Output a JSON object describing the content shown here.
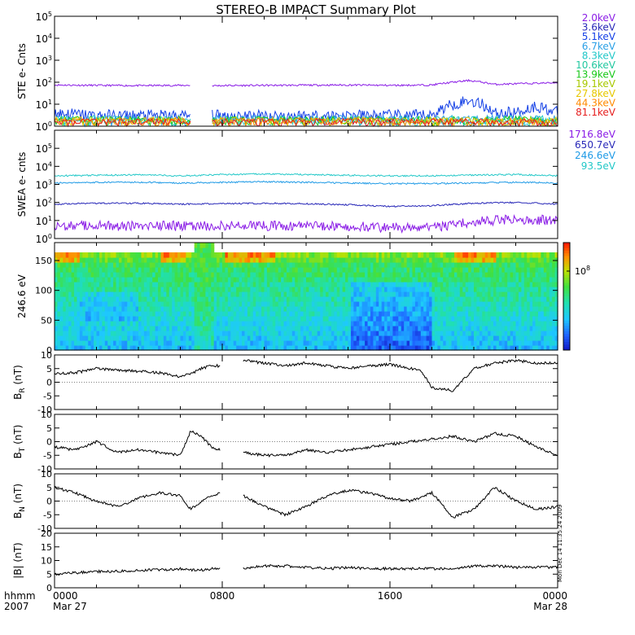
{
  "title": "STEREO-B IMPACT Summary Plot",
  "time_axis": {
    "corner_labels": [
      "hhmm",
      "2007"
    ],
    "ticks": [
      {
        "label": "0000",
        "date": "Mar 27"
      },
      {
        "label": "0800",
        "date": ""
      },
      {
        "label": "1600",
        "date": ""
      },
      {
        "label": "0000",
        "date": "Mar 28"
      }
    ]
  },
  "side_stamp": "Mon Dec 14 11:35:24 2009",
  "colorbar": {
    "tick_label": "10^8"
  },
  "colors": {
    "purple": "#8a1ce6",
    "navy": "#2828b8",
    "blue": "#1440e6",
    "skyblue": "#2aa0e6",
    "cyan": "#22c8c8",
    "green": "#18c818",
    "yellow": "#c8c800",
    "orange": "#ff8a00",
    "red": "#e61e1e",
    "teal": "#22c8c8"
  },
  "chart_data": [
    {
      "type": "line",
      "ylabel": "STE e- Cnts",
      "yscale": "log",
      "ylim": [
        1,
        100000
      ],
      "yticks": [
        "10^0",
        "10^1",
        "10^2",
        "10^3",
        "10^4",
        "10^5"
      ],
      "legend": [
        {
          "name": "2.0keV",
          "color": "#8a1ce6"
        },
        {
          "name": "3.6keV",
          "color": "#2828b8"
        },
        {
          "name": "5.1keV",
          "color": "#1440e6"
        },
        {
          "name": "6.7keV",
          "color": "#2aa0e6"
        },
        {
          "name": "8.3keV",
          "color": "#22c8c8"
        },
        {
          "name": "10.6keV",
          "color": "#22c8a0"
        },
        {
          "name": "13.9keV",
          "color": "#18c818"
        },
        {
          "name": "19.1keV",
          "color": "#a8c800"
        },
        {
          "name": "27.8keV",
          "color": "#e6c800"
        },
        {
          "name": "44.3keV",
          "color": "#ff8a00"
        },
        {
          "name": "81.1keV",
          "color": "#e61e1e"
        }
      ],
      "gap_hours": [
        6.5,
        7.5
      ],
      "series": [
        {
          "name": "2.0keV",
          "x": [
            0,
            2,
            4,
            6,
            6.5,
            7.5,
            10,
            14,
            16,
            18,
            19.8,
            21,
            22,
            23,
            24
          ],
          "y": [
            75,
            72,
            70,
            72,
            72,
            70,
            72,
            75,
            72,
            75,
            120,
            80,
            85,
            90,
            95
          ]
        },
        {
          "name": "5.1keV",
          "x": [
            0,
            2,
            4,
            6,
            6.5,
            7.5,
            10,
            14,
            16,
            18,
            19.8,
            21,
            22,
            23,
            24
          ],
          "y": [
            4,
            3,
            3,
            3,
            3,
            3,
            3,
            3,
            3,
            3,
            15,
            4,
            4,
            8,
            4
          ]
        }
      ]
    },
    {
      "type": "line",
      "ylabel": "SWEA e- cnts",
      "yscale": "log",
      "ylim": [
        1,
        1000000
      ],
      "yticks": [
        "10^0",
        "10^1",
        "10^2",
        "10^3",
        "10^4",
        "10^5"
      ],
      "legend": [
        {
          "name": "1716.8eV",
          "color": "#8a1ce6"
        },
        {
          "name": "650.7eV",
          "color": "#2828b8"
        },
        {
          "name": "246.6eV",
          "color": "#1e9ae6"
        },
        {
          "name": "93.5eV",
          "color": "#22c8c8"
        }
      ],
      "series": [
        {
          "name": "93.5eV",
          "x": [
            0,
            2,
            4,
            6,
            8,
            10,
            12,
            14,
            16,
            18,
            20,
            22,
            24
          ],
          "y": [
            3000,
            3200,
            3400,
            3000,
            3500,
            3800,
            3500,
            3200,
            3000,
            3000,
            3300,
            3500,
            3000
          ]
        },
        {
          "name": "246.6eV",
          "x": [
            0,
            2,
            4,
            6,
            8,
            10,
            12,
            14,
            16,
            18,
            20,
            22,
            24
          ],
          "y": [
            1200,
            1300,
            1300,
            1200,
            1300,
            1400,
            1300,
            1200,
            1100,
            1100,
            1200,
            1300,
            1200
          ]
        },
        {
          "name": "650.7eV",
          "x": [
            0,
            2,
            4,
            6,
            8,
            10,
            12,
            14,
            16,
            18,
            20,
            22,
            24
          ],
          "y": [
            80,
            90,
            90,
            80,
            85,
            90,
            85,
            75,
            60,
            65,
            90,
            100,
            80
          ]
        },
        {
          "name": "1716.8eV",
          "x": [
            0,
            2,
            4,
            6,
            8,
            10,
            12,
            14,
            16,
            18,
            20,
            22,
            24
          ],
          "y": [
            5,
            5,
            5,
            5,
            5,
            5,
            5,
            5,
            4,
            4,
            8,
            12,
            10
          ]
        }
      ]
    },
    {
      "type": "heatmap",
      "ylabel": "246.6 eV",
      "ylim": [
        0,
        180
      ],
      "yticks": [
        0,
        50,
        100,
        150
      ]
    },
    {
      "type": "line",
      "ylabel": "B_R (nT)",
      "ylim": [
        -10,
        10
      ],
      "yticks": [
        -10,
        -5,
        0,
        5,
        10
      ],
      "gap_hours": [
        7.9,
        9.0
      ],
      "series": [
        {
          "name": "B_R",
          "x": [
            0,
            1,
            2,
            3,
            4,
            5,
            6,
            6.5,
            7,
            7.5,
            7.9,
            9,
            10,
            11,
            12,
            13,
            14,
            15,
            16,
            17,
            17.5,
            18,
            19,
            19.5,
            20,
            21,
            22,
            23,
            24
          ],
          "y": [
            3,
            3.5,
            5,
            4.5,
            4,
            3.5,
            2,
            3,
            5,
            6,
            6,
            8,
            7,
            6,
            7,
            6,
            5,
            6,
            6.5,
            5,
            4,
            -2,
            -3,
            1,
            5,
            7,
            8,
            7,
            7
          ]
        }
      ]
    },
    {
      "type": "line",
      "ylabel": "B_T (nT)",
      "ylim": [
        -10,
        10
      ],
      "yticks": [
        -10,
        -5,
        0,
        5,
        10
      ],
      "gap_hours": [
        7.9,
        9.0
      ],
      "series": [
        {
          "name": "B_T",
          "x": [
            0,
            1,
            2,
            3,
            4,
            5,
            6,
            6.5,
            7,
            7.5,
            7.9,
            9,
            10,
            11,
            12,
            13,
            14,
            15,
            16,
            17,
            18,
            19,
            20,
            21,
            22,
            23,
            24
          ],
          "y": [
            -2,
            -3,
            0,
            -4,
            -3,
            -4,
            -5,
            4,
            2,
            -2,
            -3,
            -4,
            -5,
            -5,
            -3,
            -4,
            -3,
            -2,
            -1,
            0,
            1,
            2,
            0,
            3,
            2,
            -2,
            -5
          ]
        }
      ]
    },
    {
      "type": "line",
      "ylabel": "B_N (nT)",
      "ylim": [
        -10,
        10
      ],
      "yticks": [
        -10,
        -5,
        0,
        5,
        10
      ],
      "gap_hours": [
        7.9,
        9.0
      ],
      "series": [
        {
          "name": "B_N",
          "x": [
            0,
            1,
            2,
            3,
            4,
            5,
            6,
            6.5,
            7,
            7.5,
            7.9,
            9,
            10,
            11,
            12,
            13,
            14,
            15,
            16,
            17,
            18,
            19,
            20,
            21,
            22,
            23,
            24
          ],
          "y": [
            5,
            3,
            0,
            -2,
            1,
            3,
            2,
            -3,
            0,
            2,
            3,
            2,
            -2,
            -5,
            -2,
            2,
            4,
            3,
            1,
            0,
            3,
            -6,
            -3,
            5,
            0,
            -3,
            -2
          ]
        }
      ]
    },
    {
      "type": "line",
      "ylabel": "|B| (nT)",
      "ylim": [
        0,
        20
      ],
      "yticks": [
        0,
        5,
        10,
        15,
        20
      ],
      "gap_hours": [
        7.9,
        9.0
      ],
      "series": [
        {
          "name": "|B|",
          "x": [
            0,
            1,
            2,
            3,
            4,
            5,
            6,
            6.5,
            7,
            7.5,
            7.9,
            9,
            10,
            11,
            12,
            13,
            14,
            15,
            16,
            17,
            18,
            19,
            20,
            21,
            22,
            23,
            24
          ],
          "y": [
            5,
            5.5,
            6,
            6,
            6.5,
            6.5,
            7,
            6.5,
            6.5,
            7,
            7,
            7,
            8,
            8,
            7.5,
            7,
            7.5,
            7,
            7,
            7,
            7,
            7,
            8,
            8,
            7.5,
            7.5,
            7.5
          ]
        }
      ]
    }
  ]
}
